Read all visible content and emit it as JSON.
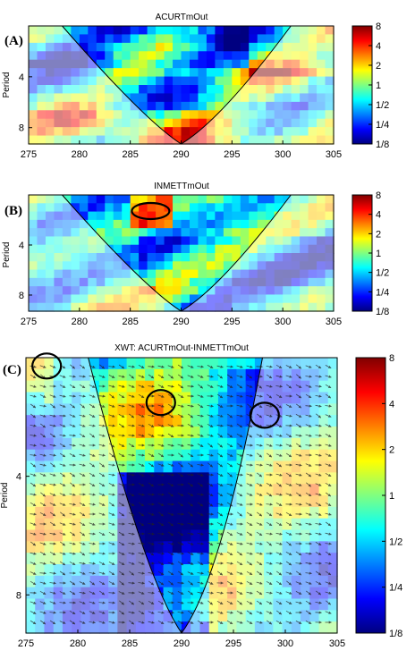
{
  "chart_data": [
    {
      "type": "heatmap",
      "panel_label": "(A)",
      "title": "ACURTmOut",
      "ylabel": "Period",
      "xlim": [
        275,
        305
      ],
      "ylim": [
        2,
        10
      ],
      "y_scale": "log2",
      "x_ticks": [
        "275",
        "280",
        "285",
        "290",
        "295",
        "300",
        "305"
      ],
      "y_ticks": [
        "4",
        "8"
      ],
      "colorbar": {
        "ticks": [
          "8",
          "4",
          "2",
          "1",
          "1/2",
          "1/4",
          "1/8"
        ],
        "scale": "log2",
        "range": [
          0.125,
          8
        ]
      },
      "cone_of_influence_apex_x": 290,
      "significance_contours": [],
      "phase_arrows": false
    },
    {
      "type": "heatmap",
      "panel_label": "(B)",
      "title": "INMETTmOut",
      "ylabel": "Period",
      "xlim": [
        275,
        305
      ],
      "ylim": [
        2,
        10
      ],
      "y_scale": "log2",
      "x_ticks": [
        "275",
        "280",
        "285",
        "290",
        "295",
        "300",
        "305"
      ],
      "y_ticks": [
        "4",
        "8"
      ],
      "colorbar": {
        "ticks": [
          "8",
          "4",
          "2",
          "1",
          "1/2",
          "1/4",
          "1/8"
        ],
        "scale": "log2",
        "range": [
          0.125,
          8
        ]
      },
      "cone_of_influence_apex_x": 290,
      "significance_contours": [
        {
          "x": 287,
          "period": 2.5
        }
      ],
      "phase_arrows": false
    },
    {
      "type": "heatmap",
      "panel_label": "(C)",
      "title": "XWT: ACURTmOut-INMETTmOut",
      "ylabel": "Period",
      "xlim": [
        275,
        305
      ],
      "ylim": [
        2,
        10
      ],
      "y_scale": "log2",
      "x_ticks": [
        "275",
        "280",
        "285",
        "290",
        "295",
        "300",
        "305"
      ],
      "y_ticks": [
        "4",
        "8"
      ],
      "colorbar": {
        "ticks": [
          "8",
          "4",
          "2",
          "1",
          "1/2",
          "1/4",
          "1/8"
        ],
        "scale": "log2",
        "range": [
          0.125,
          8
        ]
      },
      "cone_of_influence_apex_x": 290,
      "significance_contours": [
        {
          "x": 277,
          "period": 2.1
        },
        {
          "x": 288,
          "period": 2.6
        },
        {
          "x": 298,
          "period": 2.8
        }
      ],
      "phase_arrows": true
    }
  ]
}
